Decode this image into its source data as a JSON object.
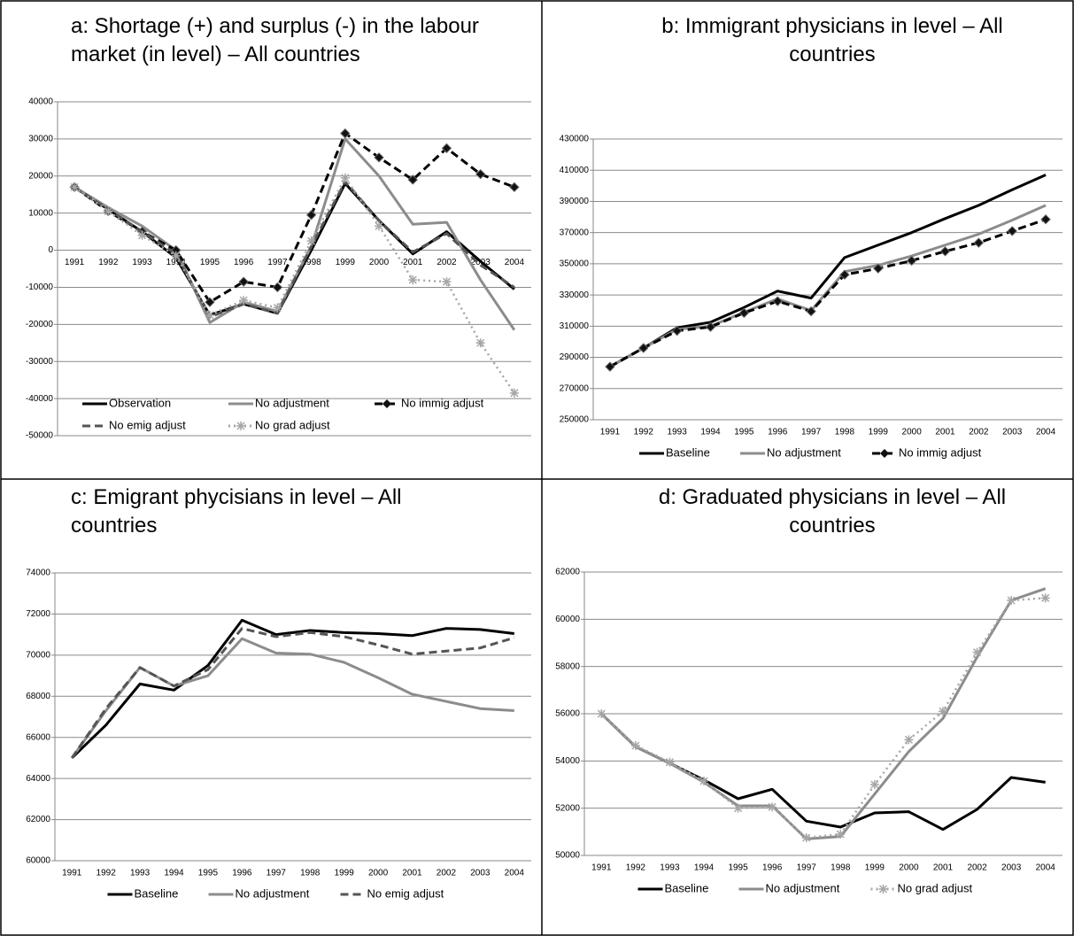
{
  "chart_data": [
    {
      "type": "line",
      "title": "a: Shortage (+) and surplus (-) in the labour market (in level) – All countries",
      "categories": [
        "1991",
        "1992",
        "1993",
        "1994",
        "1995",
        "1996",
        "1997",
        "1998",
        "1999",
        "2000",
        "2001",
        "2002",
        "2003",
        "2004"
      ],
      "ylim": [
        -50000,
        40000
      ],
      "yticks": [
        -50000,
        -40000,
        -30000,
        -20000,
        -10000,
        0,
        10000,
        20000,
        30000,
        40000
      ],
      "grid": true,
      "legend": "lower center",
      "series": [
        {
          "name": "Observation",
          "color": "#000000",
          "dash": "solid",
          "marker": "none",
          "values": [
            17000,
            11000,
            5000,
            -2000,
            -17500,
            -14500,
            -17000,
            0,
            18000,
            8000,
            -1000,
            5000,
            -3000,
            -10500
          ]
        },
        {
          "name": "No adjustment",
          "color": "#8c8c8c",
          "dash": "solid",
          "marker": "none",
          "values": [
            17000,
            11500,
            6500,
            0,
            -19500,
            -14000,
            -16500,
            1000,
            30000,
            20000,
            7000,
            7500,
            -8000,
            -21500
          ]
        },
        {
          "name": "No immig adjust",
          "color": "#000000",
          "dash": "dashed",
          "marker": "diamond",
          "values": [
            17000,
            10500,
            5000,
            0,
            -14000,
            -8500,
            -10000,
            9500,
            31500,
            25000,
            19000,
            27500,
            20500,
            17000
          ]
        },
        {
          "name": "No emig adjust",
          "color": "#555555",
          "dash": "dashed",
          "marker": "none",
          "values": [
            17000,
            11000,
            5000,
            -1000,
            -18000,
            -14500,
            -17000,
            1000,
            18500,
            8000,
            -500,
            4500,
            -4000,
            -10000
          ]
        },
        {
          "name": "No grad adjust",
          "color": "#a6a6a6",
          "dash": "dotted",
          "marker": "star",
          "values": [
            17000,
            10500,
            4000,
            -1500,
            -17500,
            -13500,
            -15500,
            2500,
            19500,
            6500,
            -8000,
            -8500,
            -25000,
            -38500
          ]
        }
      ]
    },
    {
      "type": "line",
      "title": "b: Immigrant physicians in level – All countries",
      "categories": [
        "1991",
        "1992",
        "1993",
        "1994",
        "1995",
        "1996",
        "1997",
        "1998",
        "1999",
        "2000",
        "2001",
        "2002",
        "2003",
        "2004"
      ],
      "ylim": [
        250000,
        430000
      ],
      "yticks": [
        250000,
        270000,
        290000,
        310000,
        330000,
        350000,
        370000,
        390000,
        410000,
        430000
      ],
      "grid": true,
      "legend": "below",
      "series": [
        {
          "name": "Baseline",
          "color": "#000000",
          "dash": "solid",
          "marker": "none",
          "values": [
            284000,
            296000,
            309000,
            312500,
            322000,
            332500,
            328000,
            354000,
            362000,
            370000,
            379000,
            387500,
            397500,
            407000
          ]
        },
        {
          "name": "No adjustment",
          "color": "#8c8c8c",
          "dash": "solid",
          "marker": "none",
          "values": [
            284000,
            296000,
            308000,
            310000,
            319000,
            327500,
            320000,
            345000,
            349000,
            355000,
            362000,
            369000,
            378000,
            387500
          ]
        },
        {
          "name": "No immig adjust",
          "color": "#000000",
          "dash": "dashed",
          "marker": "diamond",
          "values": [
            284000,
            296000,
            307000,
            309500,
            318500,
            326000,
            319500,
            343000,
            347000,
            352000,
            358000,
            363500,
            371000,
            378500
          ]
        }
      ]
    },
    {
      "type": "line",
      "title": "c: Emigrant phycisians in level – All countries",
      "categories": [
        "1991",
        "1992",
        "1993",
        "1994",
        "1995",
        "1996",
        "1997",
        "1998",
        "1999",
        "2000",
        "2001",
        "2002",
        "2003",
        "2004"
      ],
      "ylim": [
        60000,
        74000
      ],
      "yticks": [
        60000,
        62000,
        64000,
        66000,
        68000,
        70000,
        72000,
        74000
      ],
      "grid": true,
      "legend": "below",
      "series": [
        {
          "name": "Baseline",
          "color": "#000000",
          "dash": "solid",
          "marker": "none",
          "values": [
            65000,
            66600,
            68600,
            68300,
            69500,
            71700,
            71000,
            71200,
            71100,
            71050,
            70950,
            71300,
            71250,
            71050
          ]
        },
        {
          "name": "No adjustment",
          "color": "#8c8c8c",
          "dash": "solid",
          "marker": "none",
          "values": [
            65000,
            67300,
            69400,
            68500,
            69000,
            70800,
            70100,
            70050,
            69650,
            68900,
            68100,
            67750,
            67400,
            67300
          ]
        },
        {
          "name": "No emig adjust",
          "color": "#555555",
          "dash": "dashed",
          "marker": "none",
          "values": [
            65000,
            67400,
            69400,
            68500,
            69300,
            71300,
            70900,
            71100,
            70900,
            70500,
            70050,
            70200,
            70350,
            70850
          ]
        }
      ]
    },
    {
      "type": "line",
      "title": "d: Graduated physicians in level – All countries",
      "categories": [
        "1991",
        "1992",
        "1993",
        "1994",
        "1995",
        "1996",
        "1997",
        "1998",
        "1999",
        "2000",
        "2001",
        "2002",
        "2003",
        "2004"
      ],
      "ylim": [
        50000,
        62000
      ],
      "yticks": [
        50000,
        52000,
        54000,
        56000,
        58000,
        60000,
        62000
      ],
      "grid": true,
      "legend": "below",
      "series": [
        {
          "name": "Baseline",
          "color": "#000000",
          "dash": "solid",
          "marker": "none",
          "values": [
            56000,
            54600,
            53900,
            53200,
            52400,
            52800,
            51450,
            51200,
            51800,
            51850,
            51100,
            51950,
            53300,
            53100
          ]
        },
        {
          "name": "No adjustment",
          "color": "#8c8c8c",
          "dash": "solid",
          "marker": "none",
          "values": [
            56000,
            54600,
            53900,
            53100,
            52100,
            52100,
            50700,
            50800,
            52600,
            54400,
            55800,
            58400,
            60800,
            61300
          ]
        },
        {
          "name": "No grad adjust",
          "color": "#a6a6a6",
          "dash": "dotted",
          "marker": "star",
          "values": [
            56000,
            54650,
            53950,
            53150,
            52000,
            52050,
            50750,
            50900,
            53000,
            54900,
            56100,
            58600,
            60800,
            60900
          ]
        }
      ]
    }
  ]
}
